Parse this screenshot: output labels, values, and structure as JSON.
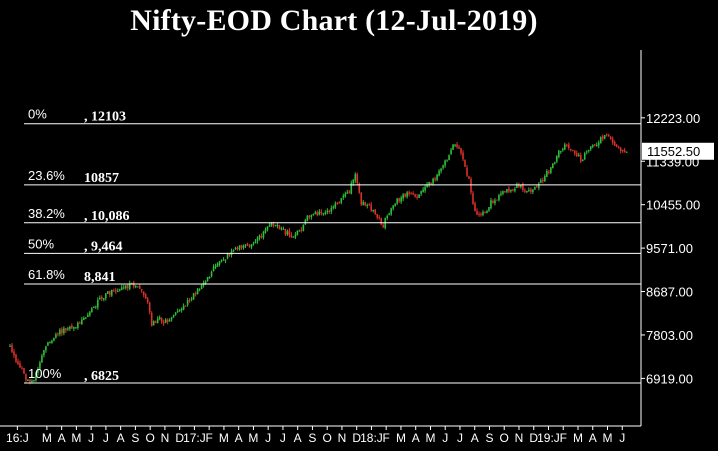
{
  "title": "Nifty-EOD Chart (12-Jul-2019)",
  "chart_data": {
    "type": "candlestick",
    "title": "Nifty-EOD Chart (12-Jul-2019)",
    "background": "#000000",
    "colors": {
      "up": "#2fbf3a",
      "down": "#e0302a",
      "wick": "#d8d8d8",
      "lines": "#ffffff",
      "last_box": "#ffffff"
    },
    "last_price": "11552.50",
    "y_ticks": [
      {
        "value": 12223,
        "label": "12223.00"
      },
      {
        "value": 11339,
        "label": "11339.00"
      },
      {
        "value": 10455,
        "label": "10455.00"
      },
      {
        "value": 9571,
        "label": "9571.00"
      },
      {
        "value": 8687,
        "label": "8687.00"
      },
      {
        "value": 7803,
        "label": "7803.00"
      },
      {
        "value": 6919,
        "label": "6919.00"
      }
    ],
    "ylim": [
      5950,
      13400
    ],
    "fib_levels": [
      {
        "pct": "0%",
        "value": 12103,
        "label": ", 12103"
      },
      {
        "pct": "23.6%",
        "value": 10857,
        "label": "10857"
      },
      {
        "pct": "38.2%",
        "value": 10086,
        "label": ", 10,086"
      },
      {
        "pct": "50%",
        "value": 9464,
        "label": ", 9,464"
      },
      {
        "pct": "61.8%",
        "value": 8841,
        "label": "8,841"
      },
      {
        "pct": "100%",
        "value": 6825,
        "label": ", 6825"
      }
    ],
    "x_ticks": [
      "16:J",
      "M",
      "A",
      "M",
      "J",
      "J",
      "A",
      "S",
      "O",
      "N",
      "D",
      "17:J",
      "F",
      "M",
      "A",
      "M",
      "J",
      "J",
      "A",
      "S",
      "O",
      "N",
      "D",
      "18:J",
      "F",
      "M",
      "A",
      "M",
      "J",
      "J",
      "A",
      "S",
      "O",
      "N",
      "D",
      "19:J",
      "F",
      "M",
      "A",
      "M",
      "J"
    ],
    "x_tick_months": [
      0,
      2,
      3,
      4,
      5,
      6,
      7,
      8,
      9,
      10,
      11,
      12,
      13,
      14,
      15,
      16,
      17,
      18,
      19,
      20,
      21,
      22,
      23,
      24,
      25,
      26,
      27,
      28,
      29,
      30,
      31,
      32,
      33,
      34,
      35,
      36,
      37,
      38,
      39,
      40,
      41
    ],
    "months_span": 42.5,
    "price_path": [
      [
        0,
        7560
      ],
      [
        0.5,
        7250
      ],
      [
        1.2,
        6850
      ],
      [
        1.6,
        6900
      ],
      [
        2.3,
        7500
      ],
      [
        3.2,
        7850
      ],
      [
        4.2,
        7950
      ],
      [
        5.2,
        8150
      ],
      [
        6.1,
        8550
      ],
      [
        6.9,
        8680
      ],
      [
        7.5,
        8750
      ],
      [
        8.2,
        8830
      ],
      [
        8.9,
        8700
      ],
      [
        9.3,
        8550
      ],
      [
        9.6,
        8000
      ],
      [
        10.1,
        8150
      ],
      [
        10.7,
        8030
      ],
      [
        11.2,
        8200
      ],
      [
        11.8,
        8400
      ],
      [
        12.5,
        8650
      ],
      [
        13.2,
        8900
      ],
      [
        13.8,
        9150
      ],
      [
        14.5,
        9350
      ],
      [
        15.2,
        9500
      ],
      [
        15.8,
        9650
      ],
      [
        16.4,
        9600
      ],
      [
        17.2,
        9900
      ],
      [
        17.8,
        10050
      ],
      [
        18.4,
        9950
      ],
      [
        19.1,
        9800
      ],
      [
        19.7,
        9950
      ],
      [
        20.2,
        10250
      ],
      [
        21.0,
        10300
      ],
      [
        21.6,
        10350
      ],
      [
        22.3,
        10480
      ],
      [
        23.0,
        10750
      ],
      [
        23.4,
        11050
      ],
      [
        23.8,
        10500
      ],
      [
        24.3,
        10450
      ],
      [
        24.8,
        10250
      ],
      [
        25.3,
        10050
      ],
      [
        25.7,
        10300
      ],
      [
        26.3,
        10550
      ],
      [
        27.0,
        10700
      ],
      [
        27.7,
        10650
      ],
      [
        28.3,
        10850
      ],
      [
        29.0,
        11050
      ],
      [
        29.6,
        11400
      ],
      [
        30.1,
        11700
      ],
      [
        30.6,
        11500
      ],
      [
        31.1,
        10950
      ],
      [
        31.5,
        10300
      ],
      [
        32.1,
        10250
      ],
      [
        32.6,
        10500
      ],
      [
        33.2,
        10650
      ],
      [
        33.8,
        10750
      ],
      [
        34.5,
        10850
      ],
      [
        35.1,
        10700
      ],
      [
        35.7,
        10800
      ],
      [
        36.2,
        11000
      ],
      [
        36.8,
        11300
      ],
      [
        37.5,
        11650
      ],
      [
        38.1,
        11600
      ],
      [
        38.7,
        11350
      ],
      [
        39.2,
        11600
      ],
      [
        39.8,
        11700
      ],
      [
        40.3,
        11900
      ],
      [
        40.8,
        11750
      ],
      [
        41.4,
        11550
      ],
      [
        41.8,
        11560
      ]
    ]
  }
}
